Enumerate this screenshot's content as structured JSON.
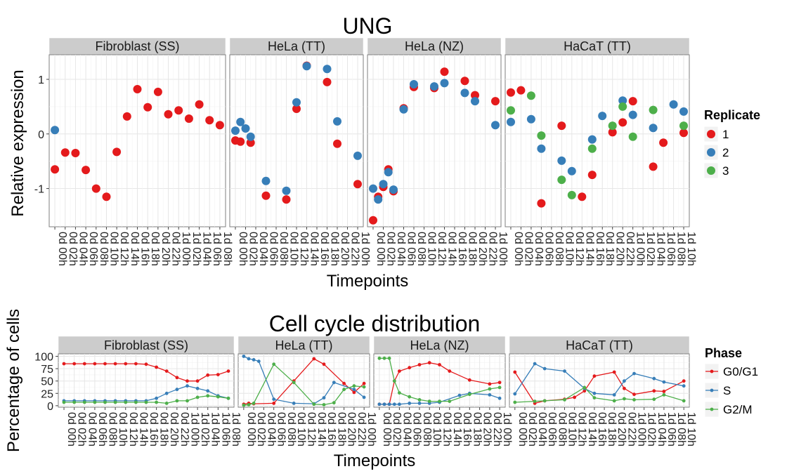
{
  "chart_data": [
    {
      "type": "scatter",
      "title": "UNG",
      "xlabel": "Timepoints",
      "ylabel": "Relative expression",
      "ylim": [
        -1.7,
        1.45
      ],
      "yticks": [
        -1,
        0,
        1
      ],
      "grid": true,
      "legend": {
        "title": "Replicate",
        "position": "right",
        "entries": [
          "1",
          "2",
          "3"
        ]
      },
      "colors": {
        "1": "#e41a1c",
        "2": "#377eb8",
        "3": "#4daf4a"
      },
      "panels": [
        {
          "name": "Fibroblast (SS)",
          "x": [
            "0d 00h",
            "0d 02h",
            "0d 04h",
            "0d 06h",
            "0d 08h",
            "0d 10h",
            "0d 12h",
            "0d 14h",
            "0d 16h",
            "0d 18h",
            "0d 20h",
            "0d 22h",
            "1d 00h",
            "1d 02h",
            "1d 04h",
            "1d 06h",
            "1d 08h"
          ],
          "series": [
            {
              "name": "1",
              "values": [
                -0.65,
                -0.34,
                -0.35,
                -0.66,
                -1.0,
                -1.15,
                -0.33,
                0.32,
                0.82,
                0.49,
                0.77,
                0.36,
                0.43,
                0.28,
                0.54,
                0.25,
                0.16
              ]
            },
            {
              "name": "2",
              "values": [
                0.07,
                null,
                null,
                null,
                null,
                null,
                null,
                null,
                null,
                null,
                null,
                null,
                null,
                null,
                null,
                null,
                null
              ]
            }
          ]
        },
        {
          "name": "HeLa (TT)",
          "x": [
            "0d 00h",
            "0d 02h",
            "0d 04h",
            "0d 06h",
            "0d 08h",
            "0d 10h",
            "0d 12h",
            "0d 14h",
            "0d 16h",
            "0d 18h",
            "0d 20h",
            "0d 22h",
            "1d 00h"
          ],
          "series": [
            {
              "name": "1",
              "values": [
                -0.12,
                -0.14,
                -0.16,
                -1.13,
                -1.2,
                0.46,
                1.25,
                0.95,
                -0.18,
                -0.92
              ]
            },
            {
              "name": "2",
              "values": [
                0.06,
                0.22,
                0.1,
                -0.05,
                -0.86,
                -1.04,
                0.58,
                1.24,
                1.19,
                0.23,
                -0.4
              ]
            }
          ],
          "series_x": {
            "1": [
              "0d 00h",
              "0d 01h",
              "0d 03h",
              "0d 06h",
              "0d 10h",
              "0d 12h",
              "0d 14h",
              "0d 18h",
              "0d 20h",
              "1d 00h"
            ],
            "2": [
              "0d 00h",
              "0d 01h",
              "0d 02h",
              "0d 03h",
              "0d 06h",
              "0d 10h",
              "0d 12h",
              "0d 14h",
              "0d 18h",
              "0d 20h",
              "1d 00h"
            ]
          }
        },
        {
          "name": "HeLa (NZ)",
          "x": [
            "0d 00h",
            "0d 02h",
            "0d 04h",
            "0d 06h",
            "0d 08h",
            "0d 10h",
            "0d 12h",
            "0d 14h",
            "0d 16h",
            "0d 18h",
            "0d 20h",
            "0d 22h",
            "1d 00h"
          ],
          "series": [
            {
              "name": "1",
              "values": [
                -1.58,
                -1.15,
                -0.97,
                -0.65,
                -1.05,
                0.47,
                0.86,
                0.84,
                1.14,
                0.97,
                0.71,
                0.6
              ]
            },
            {
              "name": "2",
              "values": [
                -1.0,
                -1.2,
                -0.92,
                -0.7,
                -1.02,
                0.45,
                0.91,
                0.87,
                0.93,
                0.75,
                0.6,
                0.16
              ]
            }
          ],
          "series_x": {
            "1": [
              "0d 00h",
              "0d 01h",
              "0d 02h",
              "0d 03h",
              "0d 04h",
              "0d 06h",
              "0d 08h",
              "0d 12h",
              "0d 14h",
              "0d 18h",
              "0d 20h",
              "1d 00h"
            ],
            "2": [
              "0d 00h",
              "0d 01h",
              "0d 02h",
              "0d 03h",
              "0d 04h",
              "0d 06h",
              "0d 08h",
              "0d 12h",
              "0d 14h",
              "0d 18h",
              "0d 20h",
              "1d 00h"
            ]
          }
        },
        {
          "name": "HaCaT (TT)",
          "x": [
            "0d 00h",
            "0d 02h",
            "0d 04h",
            "0d 06h",
            "0d 08h",
            "0d 10h",
            "0d 12h",
            "0d 14h",
            "0d 16h",
            "0d 18h",
            "0d 20h",
            "0d 22h",
            "1d 00h",
            "1d 02h",
            "1d 04h",
            "1d 06h",
            "1d 08h",
            "1d 10h"
          ],
          "series": [
            {
              "name": "1",
              "values": [
                0.76,
                0.8,
                -1.27,
                0.15,
                -1.15,
                -0.75,
                0.03,
                0.21,
                0.6,
                -0.6,
                -0.16,
                0.02
              ]
            },
            {
              "name": "2",
              "values": [
                0.22,
                0.27,
                -0.27,
                -0.49,
                -0.68,
                -0.1,
                0.33,
                0.61,
                0.35,
                0.11,
                0.54,
                0.41
              ]
            },
            {
              "name": "3",
              "values": [
                0.43,
                0.7,
                -0.03,
                -0.84,
                -1.12,
                -0.27,
                0.15,
                0.5,
                -0.05,
                0.44,
                0.15
              ]
            }
          ],
          "series_x": {
            "1": [
              "0d 00h",
              "0d 02h",
              "0d 06h",
              "0d 10h",
              "0d 14h",
              "0d 16h",
              "0d 20h",
              "0d 22h",
              "1d 00h",
              "1d 04h",
              "1d 06h",
              "1d 10h"
            ],
            "2": [
              "0d 00h",
              "0d 04h",
              "0d 06h",
              "0d 10h",
              "0d 12h",
              "0d 16h",
              "0d 18h",
              "0d 22h",
              "1d 00h",
              "1d 04h",
              "1d 08h",
              "1d 10h"
            ],
            "3": [
              "0d 00h",
              "0d 04h",
              "0d 06h",
              "0d 10h",
              "0d 12h",
              "0d 16h",
              "0d 20h",
              "0d 22h",
              "1d 00h",
              "1d 04h",
              "1d 10h"
            ]
          }
        }
      ]
    },
    {
      "type": "line",
      "title": "Cell cycle distribution",
      "xlabel": "Timepoints",
      "ylabel": "Percentage of cells",
      "ylim": [
        -3,
        105
      ],
      "yticks": [
        0,
        25,
        50,
        75,
        100
      ],
      "grid": true,
      "legend": {
        "title": "Phase",
        "position": "right",
        "entries": [
          "G0/G1",
          "S",
          "G2/M"
        ]
      },
      "colors": {
        "G0/G1": "#e41a1c",
        "S": "#377eb8",
        "G2/M": "#4daf4a"
      },
      "panels": [
        {
          "name": "Fibroblast (SS)",
          "x": [
            "0d 00h",
            "0d 02h",
            "0d 04h",
            "0d 06h",
            "0d 08h",
            "0d 10h",
            "0d 12h",
            "0d 14h",
            "0d 16h",
            "0d 18h",
            "0d 20h",
            "0d 22h",
            "1d 00h",
            "1d 02h",
            "1d 04h",
            "1d 06h",
            "1d 08h"
          ],
          "series": [
            {
              "name": "G0/G1",
              "values": [
                85,
                85,
                85,
                85,
                85,
                85,
                85,
                85,
                84,
                78,
                70,
                57,
                50,
                50,
                62,
                63,
                70
              ]
            },
            {
              "name": "S",
              "values": [
                10,
                10,
                10,
                10,
                10,
                10,
                10,
                10,
                10,
                15,
                25,
                33,
                40,
                35,
                30,
                20,
                15
              ]
            },
            {
              "name": "G2/M",
              "values": [
                7,
                7,
                7,
                7,
                7,
                7,
                7,
                7,
                7,
                7,
                5,
                10,
                10,
                17,
                20,
                18,
                15
              ]
            }
          ]
        },
        {
          "name": "HeLa (TT)",
          "x": [
            "0d 00h",
            "0d 02h",
            "0d 04h",
            "0d 06h",
            "0d 08h",
            "0d 10h",
            "0d 12h",
            "0d 14h",
            "0d 16h",
            "0d 18h",
            "0d 20h",
            "0d 22h",
            "1d 00h"
          ],
          "series": [
            {
              "name": "G0/G1",
              "values": [
                3,
                5,
                4,
                5,
                50,
                95,
                84,
                45,
                27,
                45
              ]
            },
            {
              "name": "S",
              "values": [
                100,
                95,
                93,
                90,
                13,
                5,
                4,
                16,
                47,
                33,
                17
              ]
            },
            {
              "name": "G2/M",
              "values": [
                1,
                2,
                5,
                84,
                47,
                3,
                2,
                6,
                33,
                40,
                38
              ]
            }
          ],
          "series_x": {
            "G0/G1": [
              "0d 00h",
              "0d 01h",
              "0d 02h",
              "0d 06h",
              "0d 10h",
              "0d 14h",
              "0d 16h",
              "0d 20h",
              "0d 22h",
              "1d 00h"
            ],
            "S": [
              "0d 00h",
              "0d 01h",
              "0d 02h",
              "0d 03h",
              "0d 06h",
              "0d 10h",
              "0d 14h",
              "0d 16h",
              "0d 18h",
              "0d 22h",
              "1d 00h"
            ],
            "G2/M": [
              "0d 00h",
              "0d 01h",
              "0d 02h",
              "0d 06h",
              "0d 10h",
              "0d 14h",
              "0d 16h",
              "0d 18h",
              "0d 20h",
              "0d 22h",
              "1d 00h"
            ]
          }
        },
        {
          "name": "HeLa (NZ)",
          "x": [
            "0d 00h",
            "0d 02h",
            "0d 04h",
            "0d 06h",
            "0d 08h",
            "0d 10h",
            "0d 12h",
            "0d 14h",
            "0d 16h",
            "0d 18h",
            "0d 20h",
            "0d 22h",
            "1d 00h"
          ],
          "series": [
            {
              "name": "G0/G1",
              "values": [
                3,
                3,
                3,
                50,
                70,
                77,
                83,
                87,
                83,
                70,
                52,
                44,
                47
              ]
            },
            {
              "name": "S",
              "values": [
                3,
                3,
                3,
                3,
                3,
                5,
                5,
                5,
                7,
                21,
                25,
                22,
                15
              ]
            },
            {
              "name": "G2/M",
              "values": [
                96,
                96,
                96,
                50,
                26,
                18,
                12,
                9,
                9,
                9,
                23,
                34,
                37
              ]
            }
          ],
          "series_x": {
            "G0/G1": [
              "0d 00h",
              "0d 01h",
              "0d 02h",
              "0d 03h",
              "0d 04h",
              "0d 06h",
              "0d 08h",
              "0d 10h",
              "0d 12h",
              "0d 14h",
              "0d 18h",
              "0d 22h",
              "1d 00h"
            ],
            "S": [
              "0d 00h",
              "0d 01h",
              "0d 02h",
              "0d 03h",
              "0d 04h",
              "0d 06h",
              "0d 08h",
              "0d 10h",
              "0d 12h",
              "0d 16h",
              "0d 18h",
              "0d 22h",
              "1d 00h"
            ],
            "G2/M": [
              "0d 00h",
              "0d 01h",
              "0d 02h",
              "0d 03h",
              "0d 04h",
              "0d 06h",
              "0d 08h",
              "0d 10h",
              "0d 12h",
              "0d 14h",
              "0d 18h",
              "0d 22h",
              "1d 00h"
            ]
          }
        },
        {
          "name": "HaCaT (TT)",
          "x": [
            "0d 00h",
            "0d 02h",
            "0d 04h",
            "0d 06h",
            "0d 08h",
            "0d 10h",
            "0d 12h",
            "0d 14h",
            "0d 16h",
            "0d 18h",
            "0d 20h",
            "0d 22h",
            "1d 00h",
            "1d 02h",
            "1d 04h",
            "1d 06h",
            "1d 08h",
            "1d 10h"
          ],
          "series": [
            {
              "name": "G0/G1",
              "values": [
                68,
                5,
                10,
                13,
                17,
                30,
                60,
                68,
                35,
                23,
                30,
                29,
                50
              ]
            },
            {
              "name": "S",
              "values": [
                24,
                85,
                75,
                70,
                35,
                25,
                22,
                50,
                65,
                55,
                48,
                40
              ]
            },
            {
              "name": "G2/M",
              "values": [
                7,
                9,
                10,
                12,
                37,
                16,
                10,
                14,
                12,
                13,
                22,
                10
              ]
            }
          ],
          "series_x": {
            "G0/G1": [
              "0d 00h",
              "0d 04h",
              "0d 06h",
              "0d 10h",
              "0d 12h",
              "0d 14h",
              "0d 16h",
              "0d 20h",
              "0d 22h",
              "1d 00h",
              "1d 04h",
              "1d 06h",
              "1d 10h"
            ],
            "S": [
              "0d 00h",
              "0d 04h",
              "0d 06h",
              "0d 10h",
              "0d 14h",
              "0d 16h",
              "0d 20h",
              "0d 22h",
              "1d 00h",
              "1d 04h",
              "1d 06h",
              "1d 10h"
            ],
            "G2/M": [
              "0d 00h",
              "0d 04h",
              "0d 06h",
              "0d 10h",
              "0d 14h",
              "0d 16h",
              "0d 20h",
              "0d 22h",
              "1d 00h",
              "1d 04h",
              "1d 06h",
              "1d 10h"
            ]
          }
        }
      ]
    }
  ]
}
